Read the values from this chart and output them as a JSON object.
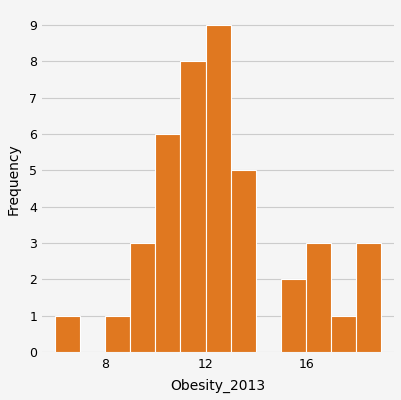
{
  "bin_edges": [
    6.0,
    7.0,
    8.0,
    9.0,
    10.0,
    11.0,
    12.0,
    13.0,
    14.0,
    15.0,
    16.0,
    17.0,
    18.0,
    19.0
  ],
  "frequencies": [
    1,
    0,
    1,
    3,
    6,
    8,
    9,
    5,
    0,
    2,
    3,
    1,
    3
  ],
  "bar_color": "#E07820",
  "bar_edgecolor": "#ffffff",
  "xlabel": "Obesity_2013",
  "ylabel": "Frequency",
  "xlim": [
    5.5,
    19.5
  ],
  "ylim": [
    0,
    9.5
  ],
  "xticks": [
    8,
    12,
    16
  ],
  "yticks": [
    0,
    1,
    2,
    3,
    4,
    5,
    6,
    7,
    8,
    9
  ],
  "grid_color": "#cccccc",
  "background_color": "#f5f5f5",
  "title": "",
  "tick_labelsize": 9,
  "label_fontsize": 10
}
